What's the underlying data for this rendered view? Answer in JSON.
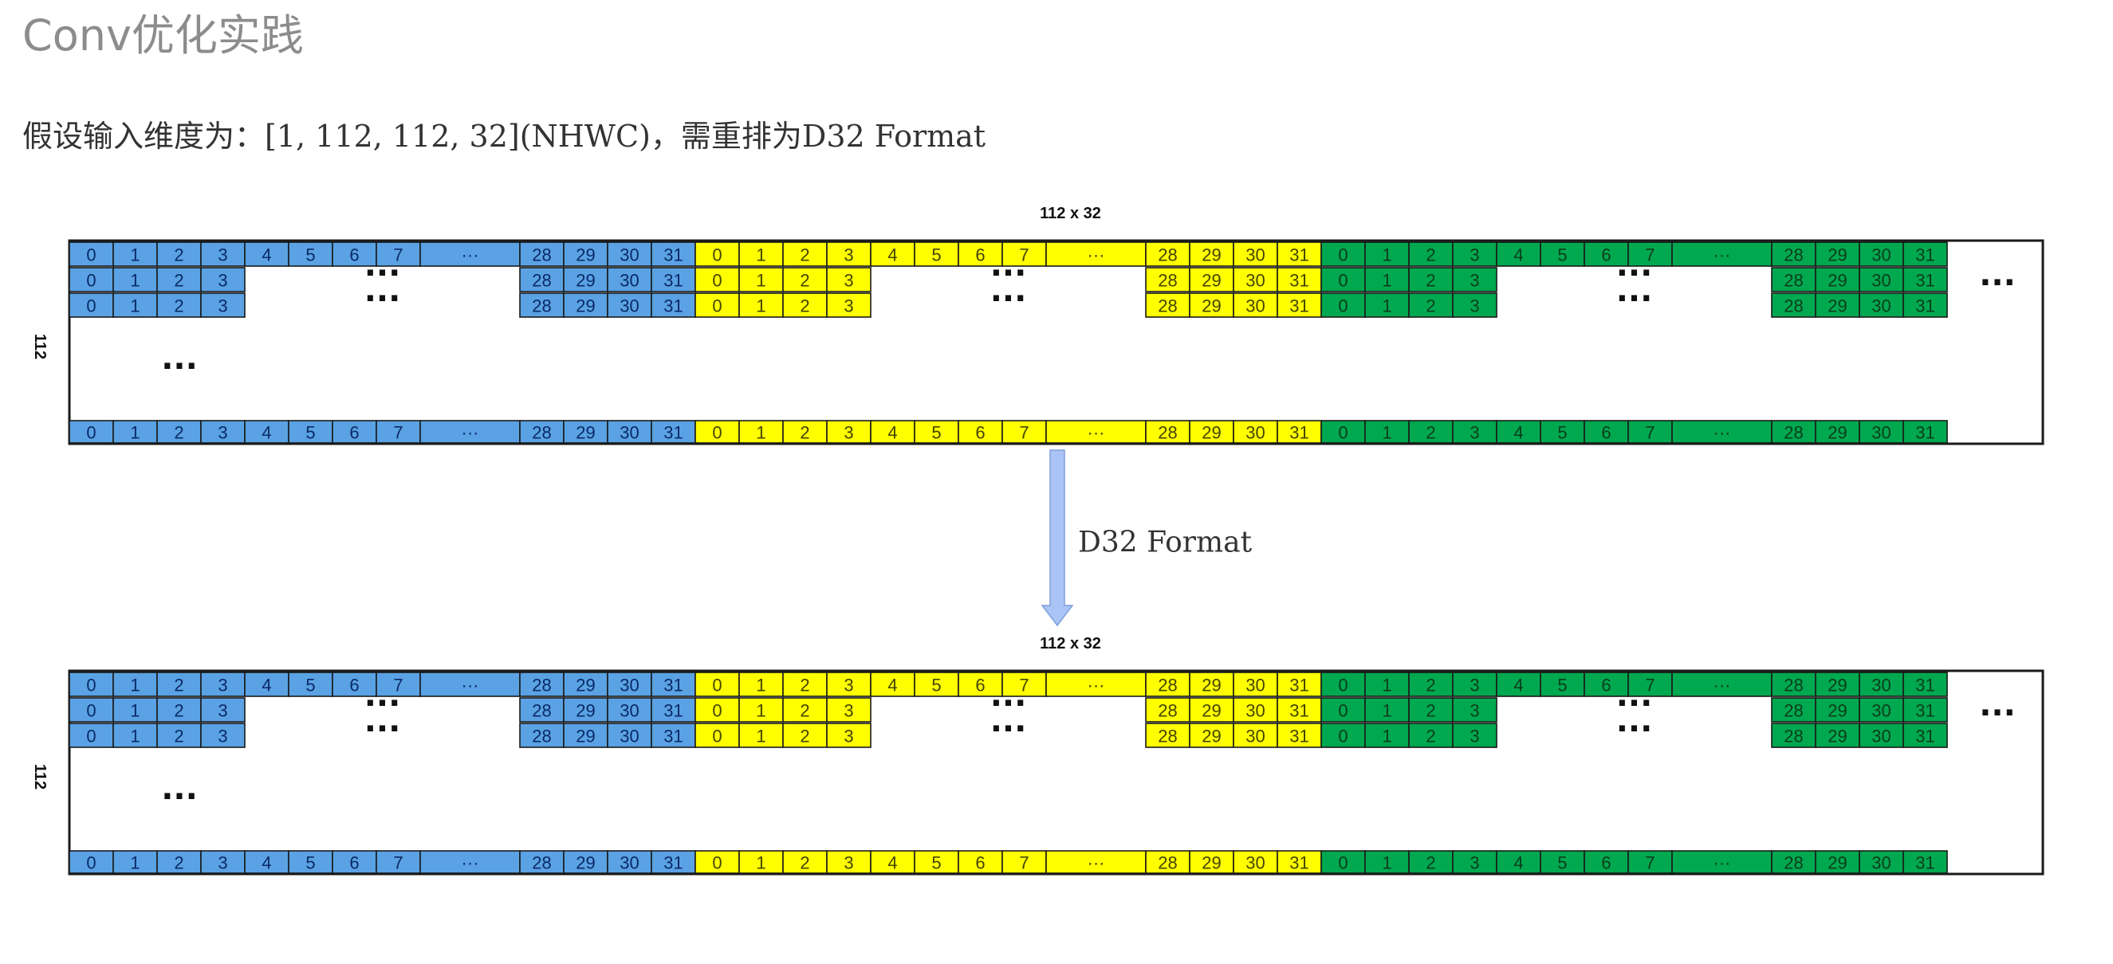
{
  "title": "Conv优化实践",
  "subtitle": "假设输入维度为：[1, 112, 112, 32](NHWC)，需重排为D32 Format",
  "colors": {
    "blue": "#5aa2e4",
    "yellow": "#ffff00",
    "green": "#00a84f",
    "border": "#1a1a1a",
    "blue_text": "#0a2a66",
    "yellow_text": "#444400",
    "green_text": "#0b3d1c",
    "arrow": "#a9c4f5"
  },
  "cells": {
    "first": [
      "0",
      "1",
      "2",
      "3",
      "4",
      "5",
      "6",
      "7"
    ],
    "ellipsis": "···",
    "last": [
      "28",
      "29",
      "30",
      "31"
    ],
    "short_first": [
      "0",
      "1",
      "2",
      "3"
    ]
  },
  "groups": [
    "blue",
    "yellow",
    "green"
  ],
  "width_label": "112 x 32",
  "height_label": "112",
  "row_ellipsis": "...",
  "col_ellipsis": "...",
  "arrow_label": "D32 Format"
}
